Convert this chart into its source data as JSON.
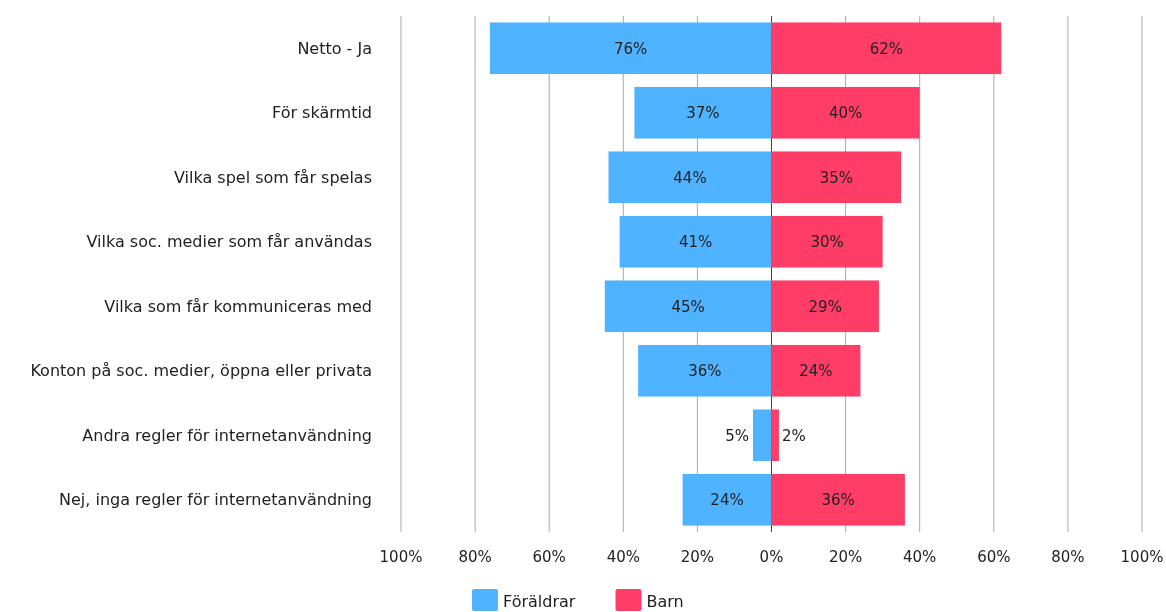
{
  "chart_data": {
    "type": "bar",
    "orientation": "horizontal",
    "categories": [
      "Netto - Ja",
      "För skärmtid",
      "Vilka spel som får spelas",
      "Vilka soc. medier som får användas",
      "Vilka som får kommuniceras med",
      "Konton på soc. medier, öppna eller privata",
      "Andra regler för internetanvändning",
      "Nej, inga regler för internetanvändning"
    ],
    "series": [
      {
        "name": "Föräldrar",
        "color": "#4fb3ff",
        "values": [
          76,
          37,
          44,
          41,
          45,
          36,
          5,
          24
        ],
        "base": [
          -76,
          -37,
          -44,
          -41,
          -45,
          -36,
          -5,
          -24
        ],
        "value_labels": [
          "76%",
          "37%",
          "44%",
          "41%",
          "45%",
          "36%",
          "5%",
          "24%"
        ]
      },
      {
        "name": "Barn",
        "color": "#ff3d67",
        "values": [
          62,
          40,
          35,
          30,
          29,
          24,
          2,
          36
        ],
        "value_labels": [
          "62%",
          "40%",
          "35%",
          "30%",
          "29%",
          "24%",
          "2%",
          "36%"
        ]
      }
    ],
    "xlim": [
      -100,
      100
    ],
    "xticks": [
      {
        "value": -100,
        "label": "100%"
      },
      {
        "value": -80,
        "label": "80%"
      },
      {
        "value": -60,
        "label": "60%"
      },
      {
        "value": -40,
        "label": "40%"
      },
      {
        "value": -20,
        "label": "20%"
      },
      {
        "value": 0,
        "label": "0%"
      },
      {
        "value": 20,
        "label": "20%"
      },
      {
        "value": 40,
        "label": "40%"
      },
      {
        "value": 60,
        "label": "60%"
      },
      {
        "value": 80,
        "label": "80%"
      },
      {
        "value": 100,
        "label": "100%"
      }
    ],
    "grid": "x",
    "legend": "bottom"
  }
}
